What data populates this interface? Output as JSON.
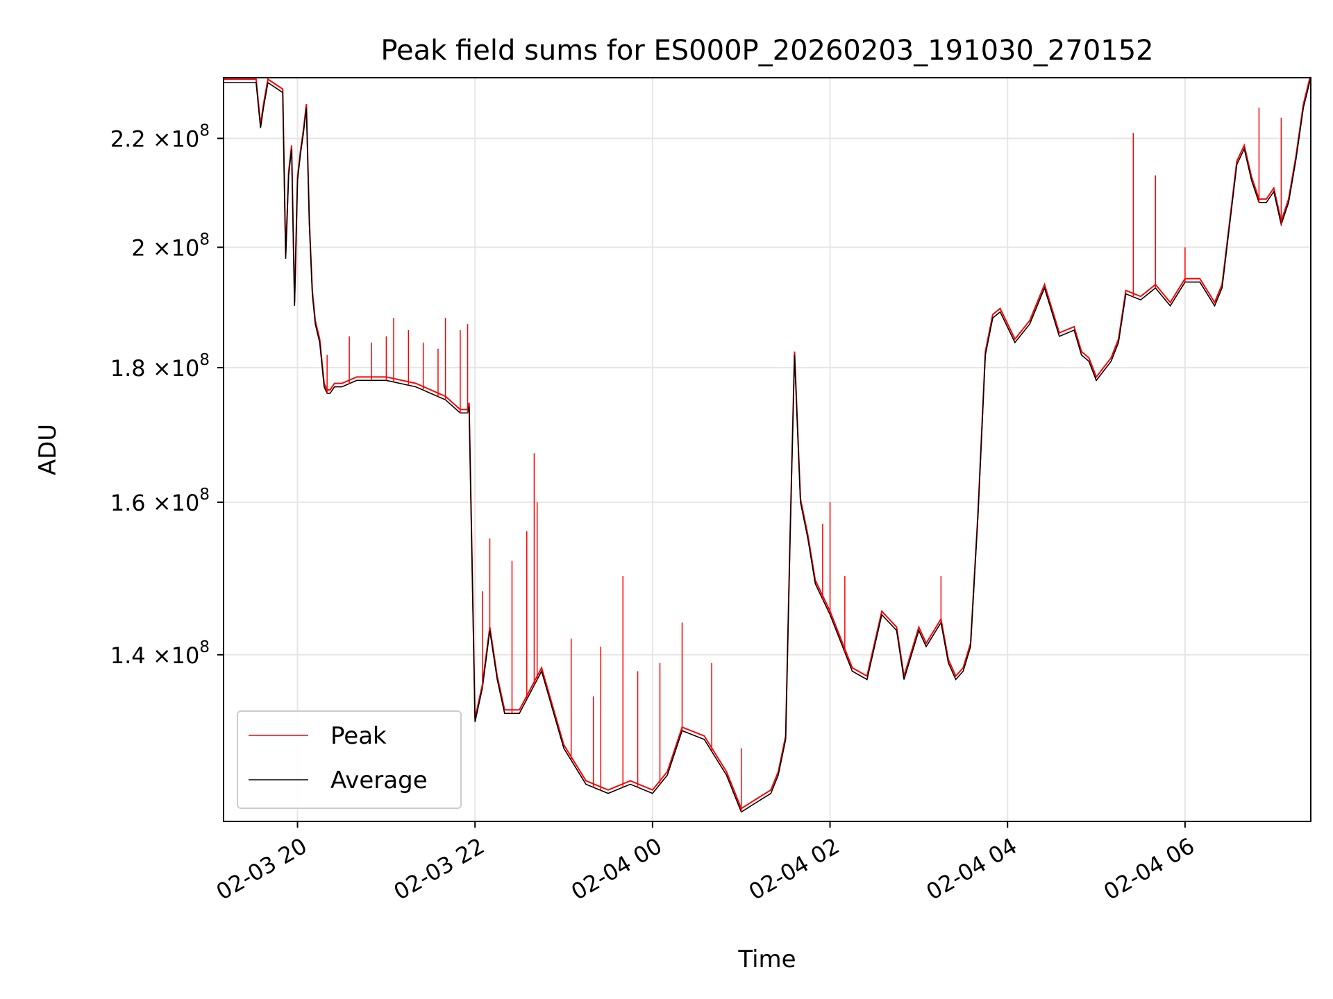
{
  "chart_data": {
    "type": "line",
    "title": "Peak field sums for ES000P_20260203_191030_270152",
    "xlabel": "Time",
    "ylabel": "ADU",
    "x_axis_type": "datetime",
    "xlim": [
      "2026-02-03T19:10",
      "2026-02-04T07:25"
    ],
    "xticks": [
      {
        "value": "2026-02-03T20:00",
        "label": "02-03 20"
      },
      {
        "value": "2026-02-03T22:00",
        "label": "02-03 22"
      },
      {
        "value": "2026-02-04T00:00",
        "label": "02-04 00"
      },
      {
        "value": "2026-02-04T02:00",
        "label": "02-04 02"
      },
      {
        "value": "2026-02-04T04:00",
        "label": "02-04 04"
      },
      {
        "value": "2026-02-04T06:00",
        "label": "02-04 06"
      }
    ],
    "y_scale": "log",
    "ylim": [
      121000000,
      232000000
    ],
    "yticks": [
      {
        "value": 140000000,
        "mantissa": "1.4",
        "exponent": "8"
      },
      {
        "value": 160000000,
        "mantissa": "1.6",
        "exponent": "8"
      },
      {
        "value": 180000000,
        "mantissa": "1.8",
        "exponent": "8"
      },
      {
        "value": 200000000,
        "mantissa": "2",
        "exponent": "8"
      },
      {
        "value": 220000000,
        "mantissa": "2.2",
        "exponent": "8"
      }
    ],
    "tick_times_label": "×10",
    "grid": true,
    "legend_position": "lower-left",
    "legend": [
      {
        "label": "Peak",
        "color": "#ff0000"
      },
      {
        "label": "Average",
        "color": "#000000"
      }
    ],
    "series": [
      {
        "name": "Average",
        "color": "#000000",
        "x": [
          "2026-02-03T19:10",
          "2026-02-03T19:20",
          "2026-02-03T19:32",
          "2026-02-03T19:35",
          "2026-02-03T19:37",
          "2026-02-03T19:40",
          "2026-02-03T19:45",
          "2026-02-03T19:50",
          "2026-02-03T19:52",
          "2026-02-03T19:54",
          "2026-02-03T19:56",
          "2026-02-03T19:58",
          "2026-02-03T20:00",
          "2026-02-03T20:02",
          "2026-02-03T20:04",
          "2026-02-03T20:06",
          "2026-02-03T20:08",
          "2026-02-03T20:10",
          "2026-02-03T20:12",
          "2026-02-03T20:15",
          "2026-02-03T20:18",
          "2026-02-03T20:20",
          "2026-02-03T20:22",
          "2026-02-03T20:25",
          "2026-02-03T20:30",
          "2026-02-03T20:40",
          "2026-02-03T21:00",
          "2026-02-03T21:20",
          "2026-02-03T21:40",
          "2026-02-03T21:50",
          "2026-02-03T21:55",
          "2026-02-03T21:56",
          "2026-02-03T22:00",
          "2026-02-03T22:05",
          "2026-02-03T22:10",
          "2026-02-03T22:15",
          "2026-02-03T22:20",
          "2026-02-03T22:30",
          "2026-02-03T22:45",
          "2026-02-03T23:00",
          "2026-02-03T23:15",
          "2026-02-03T23:30",
          "2026-02-03T23:45",
          "2026-02-04T00:00",
          "2026-02-04T00:10",
          "2026-02-04T00:20",
          "2026-02-04T00:35",
          "2026-02-04T00:50",
          "2026-02-04T01:00",
          "2026-02-04T01:10",
          "2026-02-04T01:20",
          "2026-02-04T01:25",
          "2026-02-04T01:30",
          "2026-02-04T01:33",
          "2026-02-04T01:36",
          "2026-02-04T01:40",
          "2026-02-04T01:45",
          "2026-02-04T01:50",
          "2026-02-04T02:00",
          "2026-02-04T02:15",
          "2026-02-04T02:25",
          "2026-02-04T02:35",
          "2026-02-04T02:45",
          "2026-02-04T02:50",
          "2026-02-04T03:00",
          "2026-02-04T03:05",
          "2026-02-04T03:15",
          "2026-02-04T03:20",
          "2026-02-04T03:25",
          "2026-02-04T03:30",
          "2026-02-04T03:35",
          "2026-02-04T03:40",
          "2026-02-04T03:45",
          "2026-02-04T03:50",
          "2026-02-04T03:55",
          "2026-02-04T04:05",
          "2026-02-04T04:15",
          "2026-02-04T04:25",
          "2026-02-04T04:35",
          "2026-02-04T04:45",
          "2026-02-04T04:50",
          "2026-02-04T04:55",
          "2026-02-04T05:00",
          "2026-02-04T05:10",
          "2026-02-04T05:15",
          "2026-02-04T05:20",
          "2026-02-04T05:30",
          "2026-02-04T05:40",
          "2026-02-04T05:50",
          "2026-02-04T06:00",
          "2026-02-04T06:10",
          "2026-02-04T06:20",
          "2026-02-04T06:25",
          "2026-02-04T06:26",
          "2026-02-04T06:35",
          "2026-02-04T06:40",
          "2026-02-04T06:45",
          "2026-02-04T06:50",
          "2026-02-04T06:55",
          "2026-02-04T07:00",
          "2026-02-04T07:05",
          "2026-02-04T07:10",
          "2026-02-04T07:15",
          "2026-02-04T07:20",
          "2026-02-04T07:25"
        ],
        "y": [
          231000000,
          231000000,
          231000000,
          222000000,
          226000000,
          231000000,
          230000000,
          229000000,
          198000000,
          213000000,
          218000000,
          190000000,
          212000000,
          217000000,
          221000000,
          226000000,
          204000000,
          192000000,
          187000000,
          184000000,
          177000000,
          176000000,
          176000000,
          177000000,
          177000000,
          178000000,
          178000000,
          177000000,
          175000000,
          173000000,
          173000000,
          174000000,
          132000000,
          136000000,
          143000000,
          137000000,
          133000000,
          133000000,
          138000000,
          129000000,
          125000000,
          124000000,
          125000000,
          124000000,
          126000000,
          131000000,
          130000000,
          126000000,
          122000000,
          123000000,
          124000000,
          126000000,
          130000000,
          155000000,
          182000000,
          160000000,
          155000000,
          149000000,
          145000000,
          138000000,
          137000000,
          145000000,
          143000000,
          137000000,
          143000000,
          141000000,
          144000000,
          139000000,
          137000000,
          138000000,
          141000000,
          158000000,
          182000000,
          188000000,
          189000000,
          184000000,
          187000000,
          193000000,
          185000000,
          186000000,
          182000000,
          181000000,
          178000000,
          181000000,
          184000000,
          192000000,
          191000000,
          193000000,
          190000000,
          194000000,
          194000000,
          190000000,
          193000000,
          195000000,
          215000000,
          218000000,
          212000000,
          208000000,
          208000000,
          210000000,
          204000000,
          208000000,
          216000000,
          226000000,
          232000000
        ]
      },
      {
        "name": "Peak",
        "color": "#ff0000",
        "spikes": [
          {
            "x": "2026-02-03T20:20",
            "y": 182000000
          },
          {
            "x": "2026-02-03T20:35",
            "y": 185000000
          },
          {
            "x": "2026-02-03T20:50",
            "y": 184000000
          },
          {
            "x": "2026-02-03T21:00",
            "y": 185000000
          },
          {
            "x": "2026-02-03T21:05",
            "y": 188000000
          },
          {
            "x": "2026-02-03T21:15",
            "y": 186000000
          },
          {
            "x": "2026-02-03T21:25",
            "y": 184000000
          },
          {
            "x": "2026-02-03T21:35",
            "y": 183000000
          },
          {
            "x": "2026-02-03T21:40",
            "y": 188000000
          },
          {
            "x": "2026-02-03T21:50",
            "y": 186000000
          },
          {
            "x": "2026-02-03T21:55",
            "y": 187000000
          },
          {
            "x": "2026-02-03T22:05",
            "y": 148000000
          },
          {
            "x": "2026-02-03T22:10",
            "y": 155000000
          },
          {
            "x": "2026-02-03T22:25",
            "y": 152000000
          },
          {
            "x": "2026-02-03T22:35",
            "y": 156000000
          },
          {
            "x": "2026-02-03T22:40",
            "y": 167000000
          },
          {
            "x": "2026-02-03T22:42",
            "y": 160000000
          },
          {
            "x": "2026-02-03T23:05",
            "y": 142000000
          },
          {
            "x": "2026-02-03T23:20",
            "y": 135000000
          },
          {
            "x": "2026-02-03T23:25",
            "y": 141000000
          },
          {
            "x": "2026-02-03T23:40",
            "y": 150000000
          },
          {
            "x": "2026-02-03T23:50",
            "y": 138000000
          },
          {
            "x": "2026-02-04T00:05",
            "y": 139000000
          },
          {
            "x": "2026-02-04T00:20",
            "y": 144000000
          },
          {
            "x": "2026-02-04T00:40",
            "y": 139000000
          },
          {
            "x": "2026-02-04T01:00",
            "y": 129000000
          },
          {
            "x": "2026-02-04T01:55",
            "y": 157000000
          },
          {
            "x": "2026-02-04T02:00",
            "y": 160000000
          },
          {
            "x": "2026-02-04T02:10",
            "y": 150000000
          },
          {
            "x": "2026-02-04T03:15",
            "y": 150000000
          },
          {
            "x": "2026-02-04T05:25",
            "y": 221000000
          },
          {
            "x": "2026-02-04T05:40",
            "y": 213000000
          },
          {
            "x": "2026-02-04T06:00",
            "y": 200000000
          },
          {
            "x": "2026-02-04T06:50",
            "y": 226000000
          },
          {
            "x": "2026-02-04T07:05",
            "y": 224000000
          }
        ]
      }
    ]
  }
}
